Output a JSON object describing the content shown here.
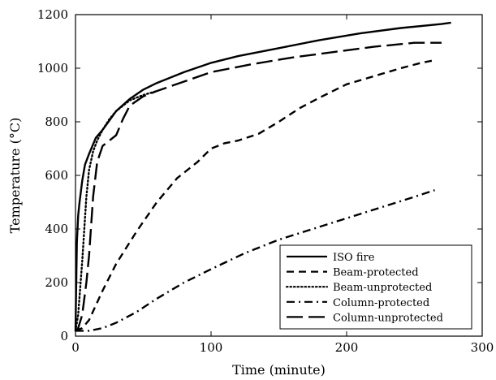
{
  "chart_data": {
    "type": "line",
    "xlabel": "Time (minute)",
    "ylabel": "Temperature (°C)",
    "xlim": [
      0,
      300
    ],
    "ylim": [
      0,
      1200
    ],
    "xticks": [
      0,
      100,
      200,
      300
    ],
    "yticks": [
      0,
      200,
      400,
      600,
      800,
      1000,
      1200
    ],
    "grid": false,
    "legend_position": "bottom-right",
    "series": [
      {
        "name": "ISO fire",
        "style": "solid",
        "x": [
          0,
          1,
          2,
          3,
          5,
          7,
          10,
          15,
          20,
          30,
          40,
          50,
          60,
          80,
          100,
          120,
          150,
          180,
          210,
          240,
          270,
          277
        ],
        "y": [
          20,
          350,
          450,
          500,
          580,
          640,
          680,
          740,
          770,
          840,
          885,
          920,
          945,
          985,
          1020,
          1045,
          1075,
          1105,
          1130,
          1150,
          1165,
          1170
        ]
      },
      {
        "name": "Beam-protected",
        "style": "dashed",
        "x": [
          0,
          5,
          10,
          20,
          30,
          45,
          60,
          75,
          90,
          100,
          110,
          120,
          135,
          150,
          165,
          180,
          200,
          220,
          240,
          255,
          265
        ],
        "y": [
          20,
          30,
          60,
          170,
          270,
          390,
          500,
          590,
          650,
          700,
          720,
          730,
          755,
          800,
          850,
          890,
          940,
          970,
          1000,
          1020,
          1030
        ]
      },
      {
        "name": "Beam-unprotected",
        "style": "dotted",
        "x": [
          0,
          2,
          5,
          8,
          10,
          13,
          16,
          20,
          25,
          30,
          40,
          50,
          60
        ],
        "y": [
          20,
          80,
          280,
          520,
          620,
          690,
          730,
          770,
          810,
          840,
          880,
          900,
          915
        ]
      },
      {
        "name": "Column-protected",
        "style": "dash-dot",
        "x": [
          0,
          10,
          20,
          30,
          45,
          60,
          80,
          100,
          125,
          150,
          175,
          200,
          225,
          250,
          265
        ],
        "y": [
          20,
          20,
          30,
          50,
          90,
          140,
          200,
          250,
          310,
          360,
          400,
          440,
          480,
          520,
          545
        ]
      },
      {
        "name": "Column-unprotected",
        "style": "long-dash",
        "x": [
          0,
          2,
          5,
          8,
          10,
          13,
          16,
          20,
          25,
          30,
          35,
          40,
          50,
          60,
          80,
          100,
          130,
          160,
          190,
          220,
          250,
          260,
          270
        ],
        "y": [
          20,
          30,
          80,
          200,
          300,
          520,
          650,
          710,
          730,
          750,
          810,
          860,
          895,
          915,
          950,
          985,
          1015,
          1040,
          1060,
          1080,
          1095,
          1095,
          1095
        ]
      }
    ]
  }
}
